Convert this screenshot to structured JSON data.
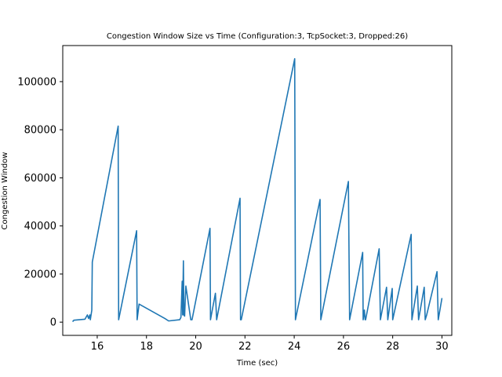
{
  "chart_data": {
    "type": "line",
    "title": "Congestion Window Size vs Time (Configuration:3, TcpSocket:3, Dropped:26)",
    "xlabel": "Time (sec)",
    "ylabel": "Congestion Window",
    "xlim": [
      14.6,
      30.4
    ],
    "ylim": [
      -5500,
      115000
    ],
    "x_ticks": [
      16,
      18,
      20,
      22,
      24,
      26,
      28,
      30
    ],
    "x_tick_labels": [
      "16",
      "18",
      "20",
      "22",
      "24",
      "26",
      "28",
      "30"
    ],
    "y_ticks": [
      0,
      20000,
      40000,
      60000,
      80000,
      100000
    ],
    "y_tick_labels": [
      "0",
      "20000",
      "40000",
      "60000",
      "80000",
      "100000"
    ],
    "grid": false,
    "legend": "none",
    "series": [
      {
        "color": "#1f77b4",
        "x": [
          15.0,
          15.05,
          15.5,
          15.6,
          15.65,
          15.7,
          15.72,
          15.78,
          15.8,
          16.85,
          16.87,
          17.6,
          17.62,
          17.7,
          18.75,
          18.9,
          19.35,
          19.4,
          19.45,
          19.47,
          19.5,
          19.52,
          19.55,
          19.57,
          19.6,
          19.8,
          19.85,
          20.58,
          20.6,
          20.8,
          20.85,
          21.8,
          21.82,
          21.85,
          24.02,
          24.05,
          25.05,
          25.08,
          26.2,
          26.25,
          26.78,
          26.8,
          26.85,
          26.88,
          26.9,
          27.45,
          27.5,
          27.5,
          27.75,
          27.8,
          27.98,
          28.0,
          28.75,
          28.78,
          29.0,
          29.05,
          29.28,
          29.32,
          29.38,
          29.8,
          29.85,
          30.0
        ],
        "y": [
          200,
          800,
          1200,
          3000,
          1500,
          3000,
          1000,
          5000,
          25000,
          81500,
          1000,
          38000,
          1000,
          7500,
          1500,
          500,
          1000,
          2000,
          17000,
          3000,
          25500,
          3000,
          2500,
          8000,
          15000,
          1000,
          1000,
          39000,
          1000,
          12000,
          1000,
          51500,
          1000,
          1000,
          109500,
          1000,
          51000,
          1000,
          58500,
          1000,
          29000,
          1000,
          5000,
          1000,
          1000,
          30500,
          1000,
          1000,
          14500,
          1000,
          14000,
          1000,
          36500,
          1000,
          15000,
          1000,
          14500,
          1000,
          3000,
          21000,
          1000,
          10000
        ]
      }
    ]
  }
}
